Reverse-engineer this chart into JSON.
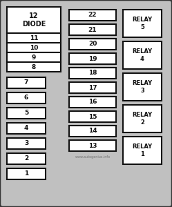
{
  "bg_color": "#c0c0c0",
  "box_fill": "#ffffff",
  "box_edge": "#111111",
  "text_color": "#111111",
  "watermark": "www.autogenius.info",
  "left_top_label": "12\nDIODE",
  "left_top_sub": [
    "11",
    "10",
    "9",
    "8"
  ],
  "left_singles": [
    "7",
    "6",
    "5",
    "4",
    "3",
    "2",
    "1"
  ],
  "middle_col": [
    "22",
    "21",
    "20",
    "19",
    "18",
    "17",
    "16",
    "15",
    "14",
    "13"
  ],
  "relay_labels": [
    "RELAY\n5",
    "RELAY\n4",
    "RELAY\n3",
    "RELAY\n2",
    "RELAY\n1"
  ],
  "fig_w": 2.49,
  "fig_h": 3.0,
  "dpi": 100
}
